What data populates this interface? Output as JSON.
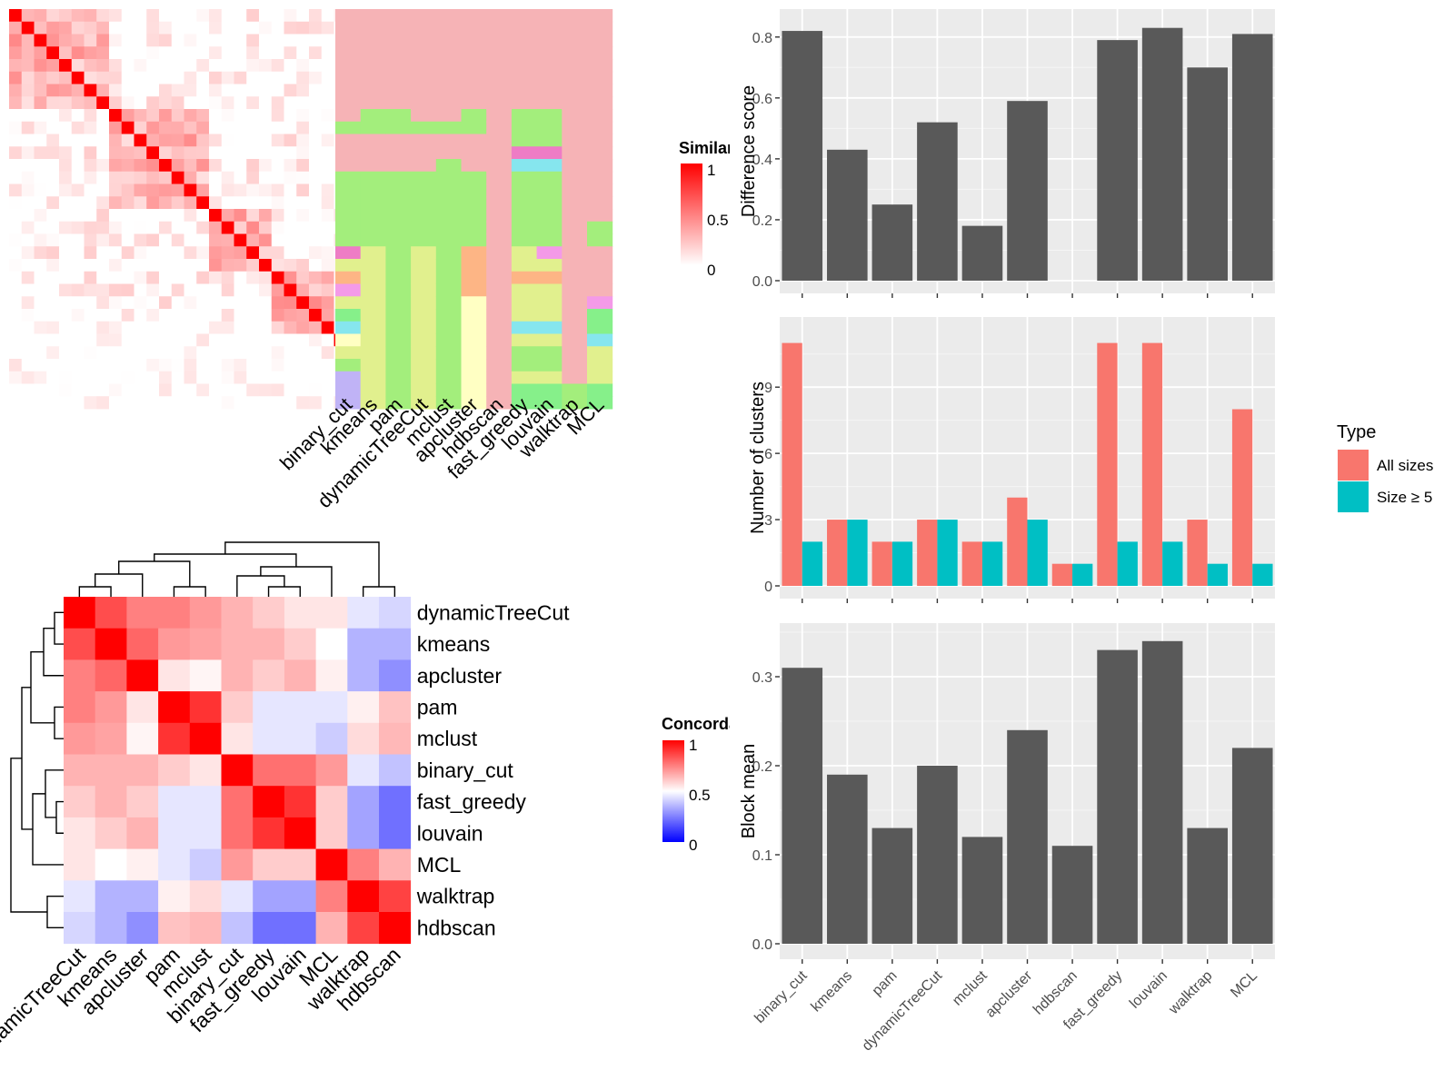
{
  "chart_data": [
    {
      "type": "heatmap",
      "role": "similarity-matrix-with-cluster-labels",
      "legend_title": "Similarity",
      "legend_ticks": [
        "1",
        "0.5",
        "0"
      ],
      "method_labels": [
        "binary_cut",
        "kmeans",
        "pam",
        "dynamicTreeCut",
        "mclust",
        "apcluster",
        "hdbscan",
        "fast_greedy",
        "louvain",
        "walktrap",
        "MCL"
      ],
      "n_terms": 32
    },
    {
      "type": "heatmap",
      "role": "concordance-between-methods",
      "legend_title": "Concordance",
      "legend_ticks": [
        "1",
        "0.5",
        "0"
      ],
      "row_labels": [
        "dynamicTreeCut",
        "kmeans",
        "apcluster",
        "pam",
        "mclust",
        "binary_cut",
        "fast_greedy",
        "louvain",
        "MCL",
        "walktrap",
        "hdbscan"
      ],
      "col_labels": [
        "dynamicTreeCut",
        "kmeans",
        "apcluster",
        "pam",
        "mclust",
        "binary_cut",
        "fast_greedy",
        "louvain",
        "MCL",
        "walktrap",
        "hdbscan"
      ],
      "values": [
        [
          1.0,
          0.85,
          0.75,
          0.75,
          0.7,
          0.65,
          0.6,
          0.55,
          0.55,
          0.45,
          0.42
        ],
        [
          0.85,
          1.0,
          0.8,
          0.7,
          0.68,
          0.65,
          0.65,
          0.6,
          0.5,
          0.35,
          0.35
        ],
        [
          0.75,
          0.8,
          1.0,
          0.55,
          0.52,
          0.65,
          0.6,
          0.65,
          0.53,
          0.35,
          0.28
        ],
        [
          0.75,
          0.7,
          0.55,
          1.0,
          0.9,
          0.6,
          0.45,
          0.45,
          0.45,
          0.53,
          0.62
        ],
        [
          0.7,
          0.68,
          0.52,
          0.9,
          1.0,
          0.55,
          0.45,
          0.45,
          0.4,
          0.57,
          0.64
        ],
        [
          0.65,
          0.65,
          0.65,
          0.6,
          0.55,
          1.0,
          0.78,
          0.78,
          0.7,
          0.45,
          0.38
        ],
        [
          0.6,
          0.65,
          0.6,
          0.45,
          0.45,
          0.78,
          1.0,
          0.9,
          0.6,
          0.32,
          0.22
        ],
        [
          0.55,
          0.6,
          0.65,
          0.45,
          0.45,
          0.78,
          0.9,
          1.0,
          0.6,
          0.32,
          0.22
        ],
        [
          0.55,
          0.5,
          0.53,
          0.45,
          0.4,
          0.7,
          0.6,
          0.6,
          1.0,
          0.75,
          0.65
        ],
        [
          0.45,
          0.35,
          0.35,
          0.53,
          0.57,
          0.45,
          0.32,
          0.32,
          0.75,
          1.0,
          0.87
        ],
        [
          0.42,
          0.35,
          0.28,
          0.62,
          0.64,
          0.38,
          0.22,
          0.22,
          0.65,
          0.87,
          1.0
        ]
      ]
    },
    {
      "type": "bar",
      "categories": [
        "binary_cut",
        "kmeans",
        "pam",
        "dynamicTreeCut",
        "mclust",
        "apcluster",
        "hdbscan",
        "fast_greedy",
        "louvain",
        "walktrap",
        "MCL"
      ],
      "values": [
        0.82,
        0.43,
        0.25,
        0.52,
        0.18,
        0.59,
        0.0,
        0.79,
        0.83,
        0.7,
        0.81
      ],
      "ylabel": "Difference score",
      "ylim": [
        0,
        0.85
      ],
      "yticks": [
        "0.0",
        "0.2",
        "0.4",
        "0.6",
        "0.8"
      ],
      "grid": true
    },
    {
      "type": "bar",
      "categories": [
        "binary_cut",
        "kmeans",
        "pam",
        "dynamicTreeCut",
        "mclust",
        "apcluster",
        "hdbscan",
        "fast_greedy",
        "louvain",
        "walktrap",
        "MCL"
      ],
      "series": [
        {
          "name": "All sizes",
          "color": "#F8766D",
          "values": [
            11,
            3,
            2,
            3,
            2,
            4,
            1,
            11,
            11,
            3,
            8
          ]
        },
        {
          "name": "Size ≥ 5",
          "color": "#00BFC4",
          "values": [
            2,
            3,
            2,
            3,
            2,
            3,
            1,
            2,
            2,
            1,
            1
          ]
        }
      ],
      "ylabel": "Number of clusters",
      "ylim": [
        0,
        11.6
      ],
      "yticks": [
        "0",
        "3",
        "6",
        "9"
      ],
      "legend_title": "Type",
      "legend_position": "right",
      "grid": true
    },
    {
      "type": "bar",
      "categories": [
        "binary_cut",
        "kmeans",
        "pam",
        "dynamicTreeCut",
        "mclust",
        "apcluster",
        "hdbscan",
        "fast_greedy",
        "louvain",
        "walktrap",
        "MCL"
      ],
      "values": [
        0.31,
        0.19,
        0.13,
        0.2,
        0.12,
        0.24,
        0.11,
        0.33,
        0.34,
        0.13,
        0.22
      ],
      "ylabel": "Block mean",
      "ylim": [
        0,
        0.35
      ],
      "yticks": [
        "0.0",
        "0.1",
        "0.2",
        "0.3"
      ],
      "grid": true
    }
  ],
  "colors": {
    "bar_fill": "#595959",
    "panel_bg": "#EBEBEB",
    "heat_high": "#FF0000",
    "heat_mid": "#FFFFFF",
    "heat_low": "#0000FF"
  }
}
